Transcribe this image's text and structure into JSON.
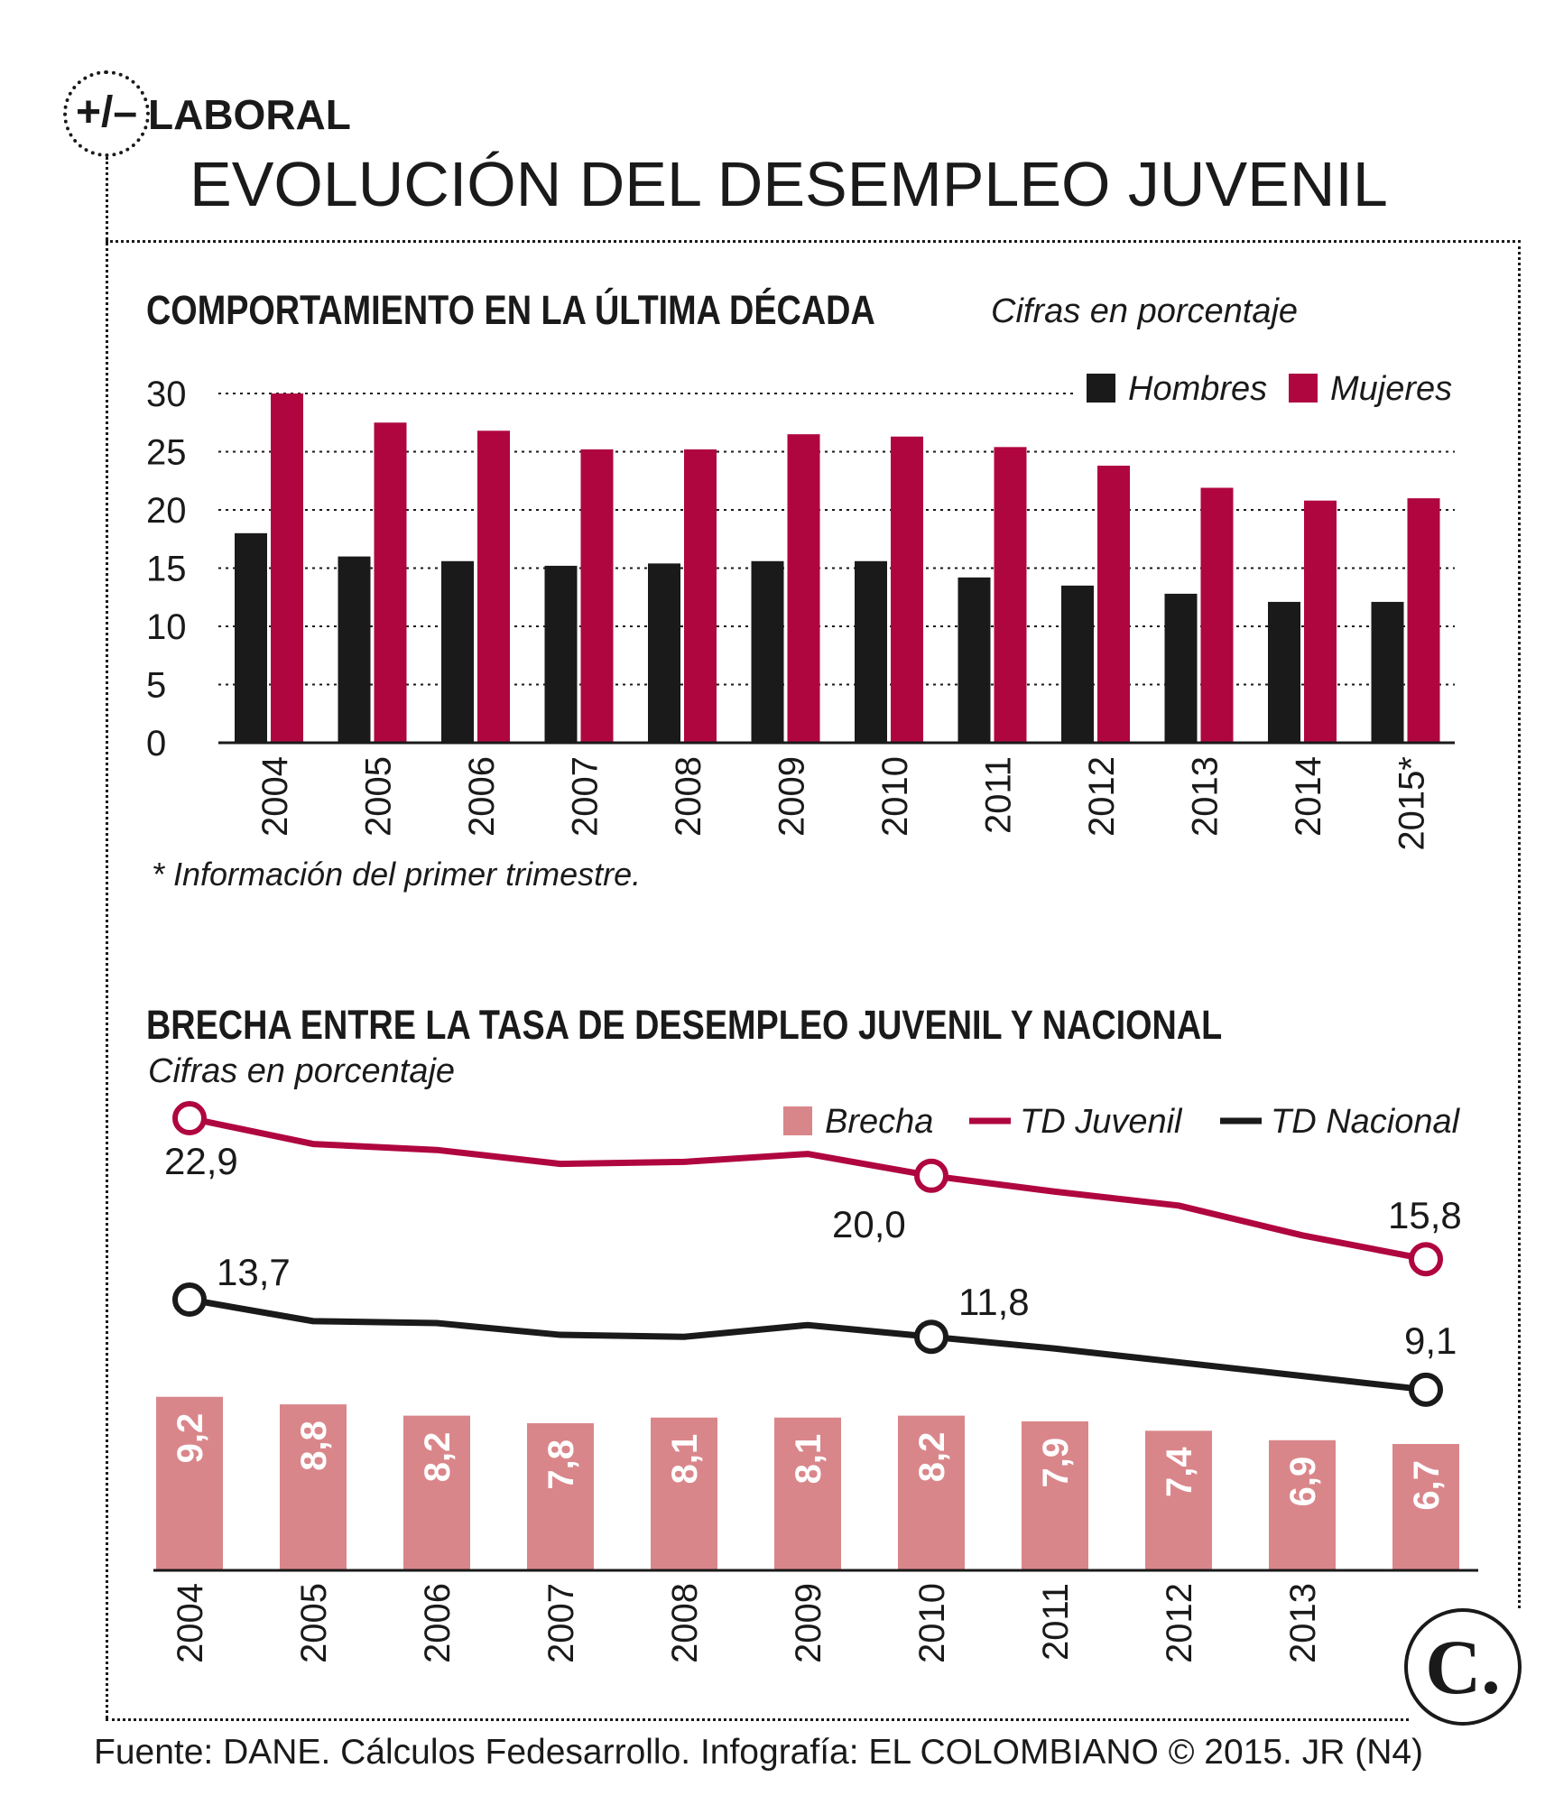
{
  "header": {
    "badge": "+/–",
    "section": "LABORAL",
    "title": "EVOLUCIÓN DEL DESEMPLEO JUVENIL"
  },
  "chart1": {
    "title": "COMPORTAMIENTO EN LA ÚLTIMA DÉCADA",
    "subtitle": "Cifras en porcentaje",
    "note": "* Información del primer trimestre."
  },
  "chart2": {
    "title": "BRECHA ENTRE LA TASA DE DESEMPLEO JUVENIL Y NACIONAL",
    "subtitle": "Cifras en porcentaje"
  },
  "logo": "C.",
  "footer": "Fuente: DANE. Cálculos Fedesarrollo. Infografía: EL COLOMBIANO © 2015. JR (N4)",
  "chart_data": [
    {
      "type": "bar",
      "title": "COMPORTAMIENTO EN LA ÚLTIMA DÉCADA",
      "ylabel": "Cifras en porcentaje",
      "categories": [
        "2004",
        "2005",
        "2006",
        "2007",
        "2008",
        "2009",
        "2010",
        "2011",
        "2012",
        "2013",
        "2014",
        "2015*"
      ],
      "yticks": [
        "0",
        "5",
        "10",
        "15",
        "20",
        "25",
        "30"
      ],
      "ylim": [
        0,
        30
      ],
      "grid": true,
      "legend": "top-right",
      "series": [
        {
          "name": "Hombres",
          "color": "#1a1a1a",
          "values": [
            18.0,
            16.0,
            15.6,
            15.2,
            15.4,
            15.6,
            15.6,
            14.2,
            13.5,
            12.8,
            12.1,
            12.1
          ]
        },
        {
          "name": "Mujeres",
          "color": "#b0063f",
          "values": [
            30.0,
            27.5,
            26.8,
            25.2,
            25.2,
            26.5,
            26.3,
            25.4,
            23.8,
            21.9,
            20.8,
            21.0
          ]
        }
      ]
    },
    {
      "type": "bar",
      "title": "BRECHA ENTRE LA TASA DE DESEMPLEO JUVENIL Y NACIONAL",
      "ylabel": "Cifras en porcentaje",
      "categories": [
        "2004",
        "2005",
        "2006",
        "2007",
        "2008",
        "2009",
        "2010",
        "2011",
        "2012",
        "2013",
        ""
      ],
      "legend": "top-right",
      "series": [
        {
          "name": "Brecha",
          "type": "bar",
          "color": "#d9868a",
          "values": [
            9.2,
            8.8,
            8.2,
            7.8,
            8.1,
            8.1,
            8.2,
            7.9,
            7.4,
            6.9,
            6.7
          ],
          "labels": [
            "9,2",
            "8,8",
            "8,2",
            "7,8",
            "8,1",
            "8,1",
            "8,2",
            "7,9",
            "7,4",
            "6,9",
            "6,7"
          ]
        },
        {
          "name": "TD Juvenil",
          "type": "line",
          "color": "#b0063f",
          "values": [
            22.9,
            21.6,
            21.3,
            20.6,
            20.7,
            21.1,
            20.0,
            19.2,
            18.5,
            17.0,
            15.8
          ],
          "labels": [
            {
              "index": 0,
              "text": "22,9"
            },
            {
              "index": 6,
              "text": "20,0"
            },
            {
              "index": 10,
              "text": "15,8"
            }
          ]
        },
        {
          "name": "TD Nacional",
          "type": "line",
          "color": "#1a1a1a",
          "values": [
            13.7,
            12.6,
            12.5,
            11.9,
            11.8,
            12.4,
            11.8,
            11.2,
            10.5,
            9.8,
            9.1
          ],
          "labels": [
            {
              "index": 0,
              "text": "13,7"
            },
            {
              "index": 6,
              "text": "11,8"
            },
            {
              "index": 10,
              "text": "9,1"
            }
          ]
        }
      ]
    }
  ]
}
